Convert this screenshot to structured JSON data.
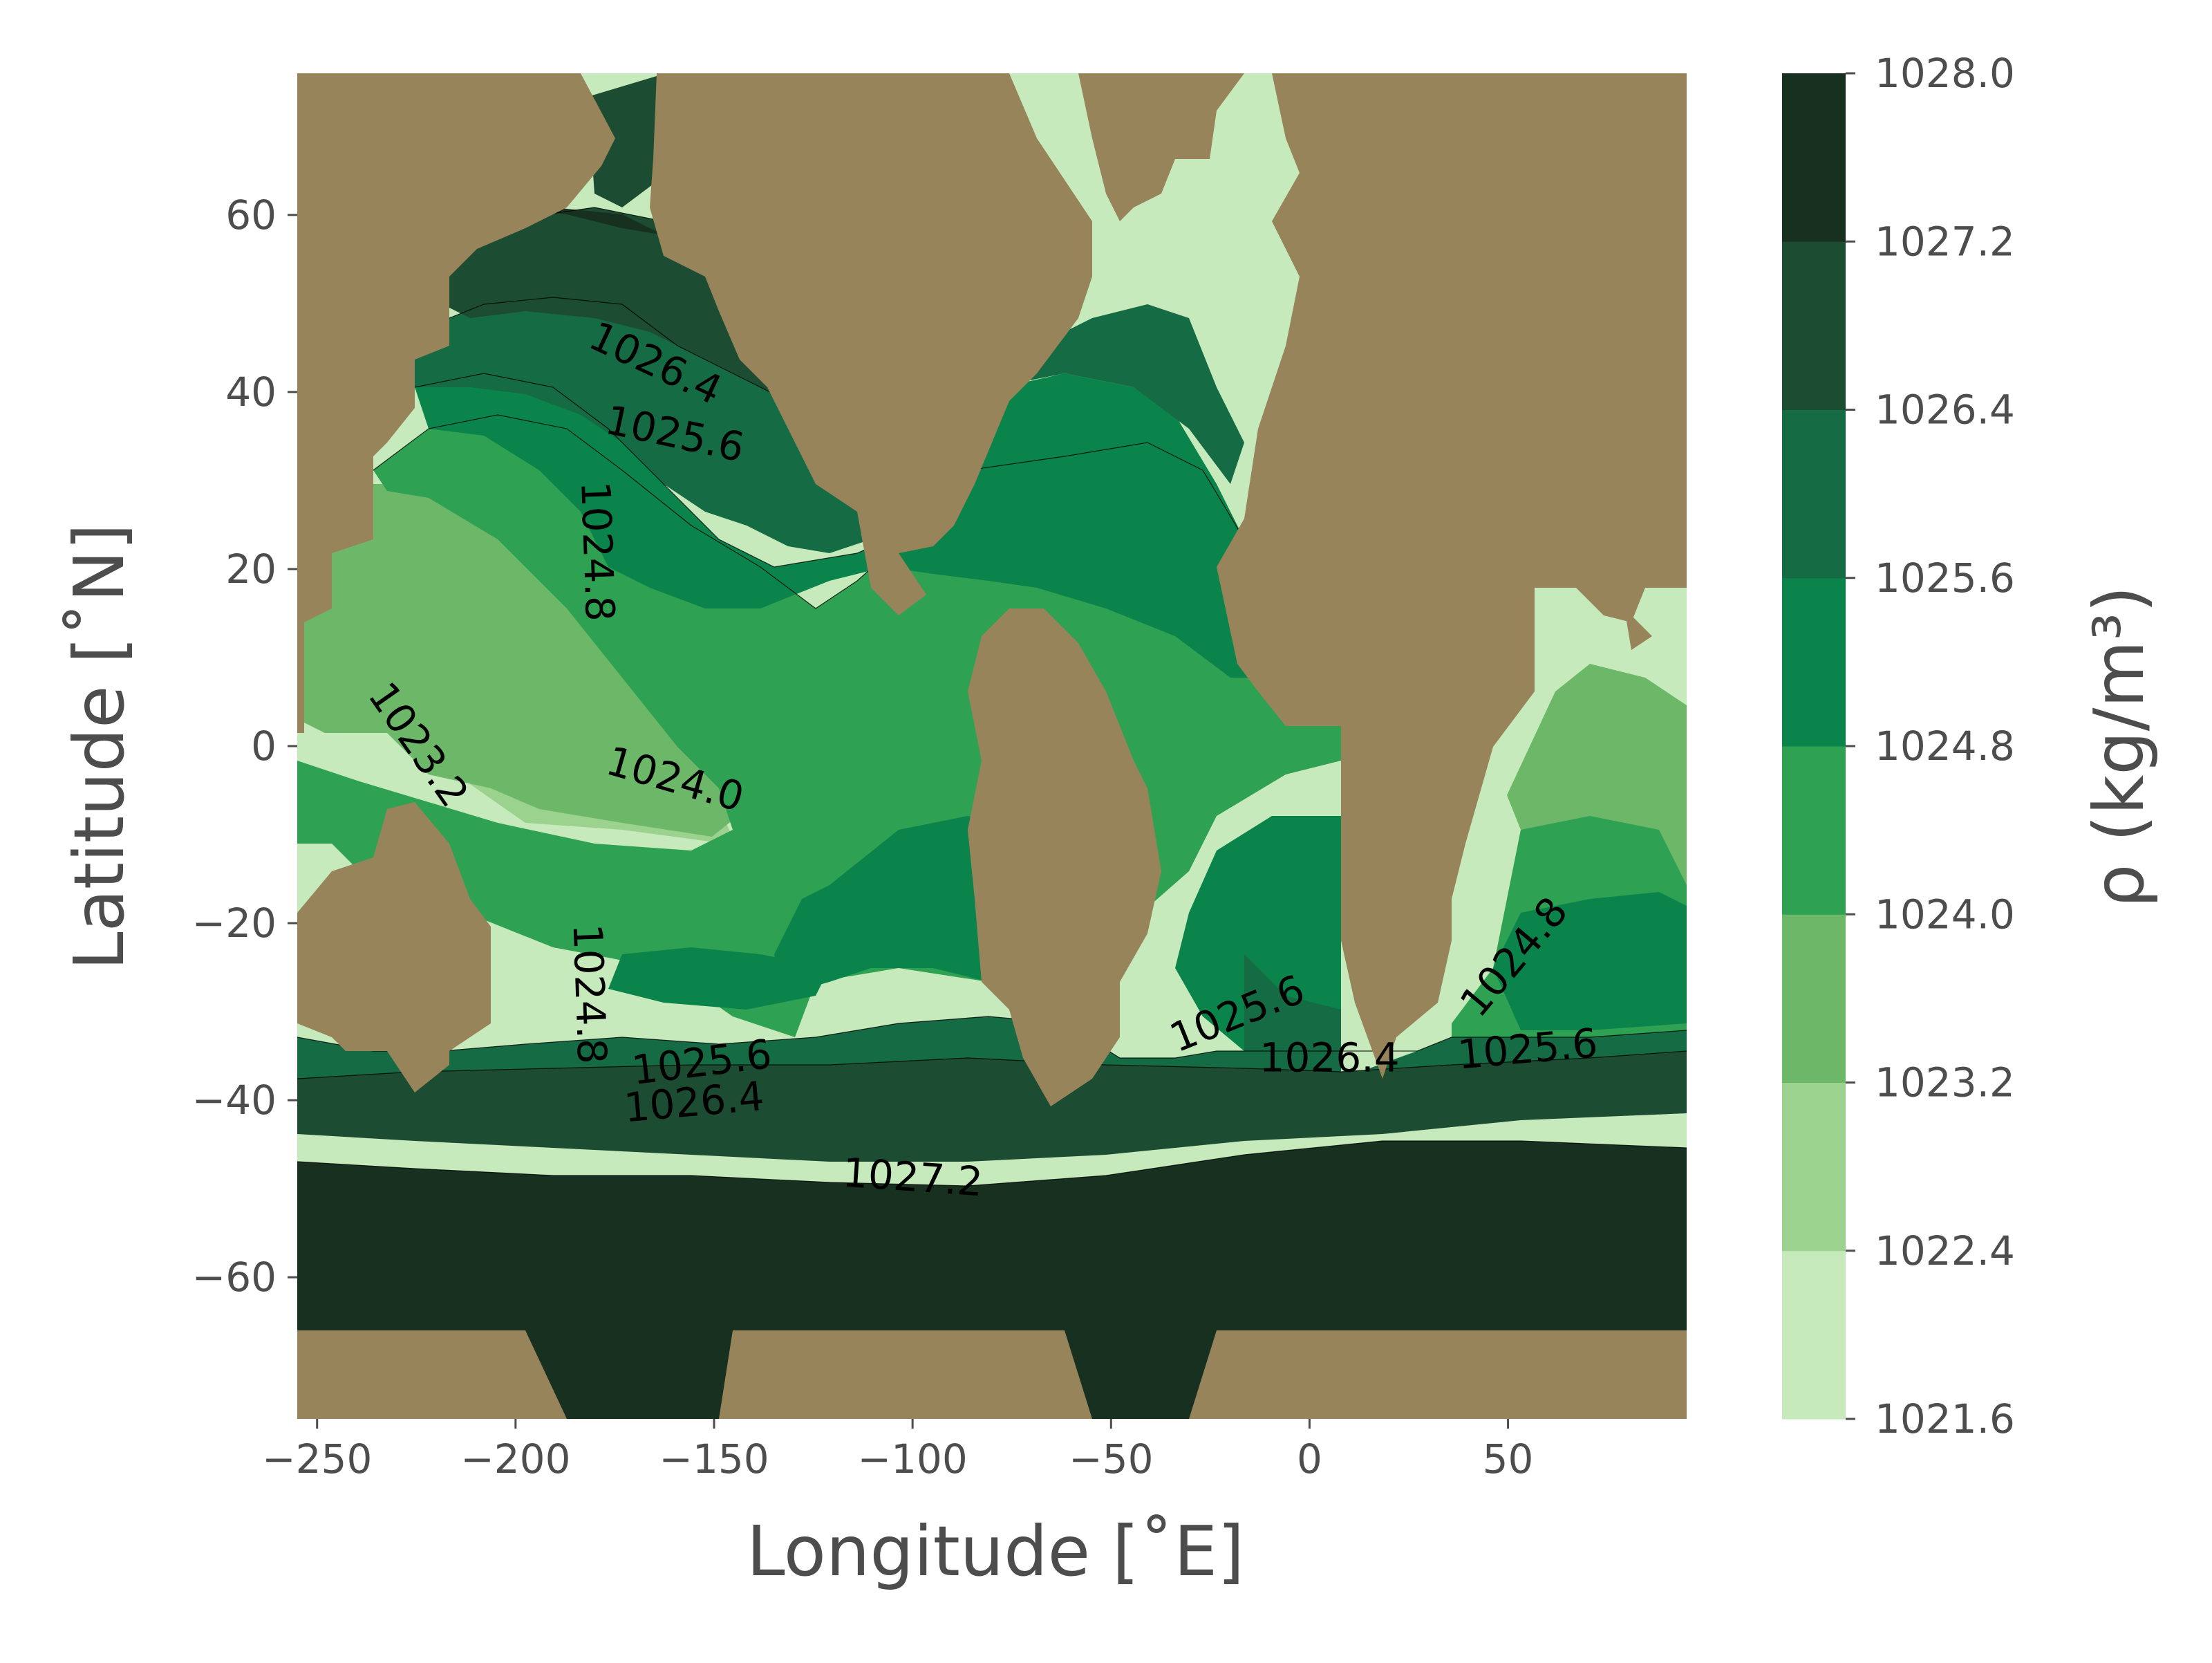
{
  "chart_data": {
    "type": "contourf",
    "title": "",
    "xlabel": "Longitude [˚E]",
    "ylabel": "Latitude [˚N]",
    "xlim": [
      -255,
      95
    ],
    "ylim": [
      -76,
      76
    ],
    "x_ticks": [
      -250,
      -200,
      -150,
      -100,
      -50,
      0,
      50
    ],
    "x_tick_labels": [
      "−250",
      "−200",
      "−150",
      "−100",
      "−50",
      "0",
      "50"
    ],
    "y_ticks": [
      60,
      40,
      20,
      0,
      -20,
      -40,
      -60
    ],
    "y_tick_labels": [
      "60",
      "40",
      "20",
      "0",
      "−20",
      "−40",
      "−60"
    ],
    "grid": false,
    "land_color": "#98845a",
    "levels": [
      1021.6,
      1022.4,
      1023.2,
      1024.0,
      1024.8,
      1025.6,
      1026.4,
      1027.2,
      1028.0
    ],
    "colors": [
      "#c6eabb",
      "#9bd28d",
      "#6cb768",
      "#2fa153",
      "#0b844c",
      "#156b44",
      "#1c4c32",
      "#183020"
    ],
    "colorbar": {
      "label": "ρ (kg/m³)",
      "tick_labels": [
        "1028.0",
        "1027.2",
        "1026.4",
        "1025.6",
        "1024.8",
        "1024.0",
        "1023.2",
        "1022.4",
        "1021.6"
      ]
    },
    "contour_labels": [
      {
        "text": "1026.4",
        "lon": -165,
        "lat": 43,
        "angle": 25
      },
      {
        "text": "1025.6",
        "lon": -160,
        "lat": 35,
        "angle": 12
      },
      {
        "text": "1024.8",
        "lon": -180,
        "lat": 22,
        "angle": 88
      },
      {
        "text": "1023.2",
        "lon": -225,
        "lat": 0,
        "angle": 55
      },
      {
        "text": "1024.0",
        "lon": -160,
        "lat": -4,
        "angle": 16
      },
      {
        "text": "1024.8",
        "lon": -182,
        "lat": -28,
        "angle": 88
      },
      {
        "text": "1025.6",
        "lon": -153,
        "lat": -36,
        "angle": -7
      },
      {
        "text": "1026.4",
        "lon": -155,
        "lat": -40.5,
        "angle": -5
      },
      {
        "text": "1027.2",
        "lon": -100,
        "lat": -49,
        "angle": 4
      },
      {
        "text": "1025.6",
        "lon": -18,
        "lat": -30.5,
        "angle": -22
      },
      {
        "text": "1026.4",
        "lon": 5,
        "lat": -35.5,
        "angle": 0
      },
      {
        "text": "1024.8",
        "lon": 52,
        "lat": -24,
        "angle": -50
      },
      {
        "text": "1025.6",
        "lon": 55,
        "lat": -34.5,
        "angle": -5
      }
    ]
  }
}
